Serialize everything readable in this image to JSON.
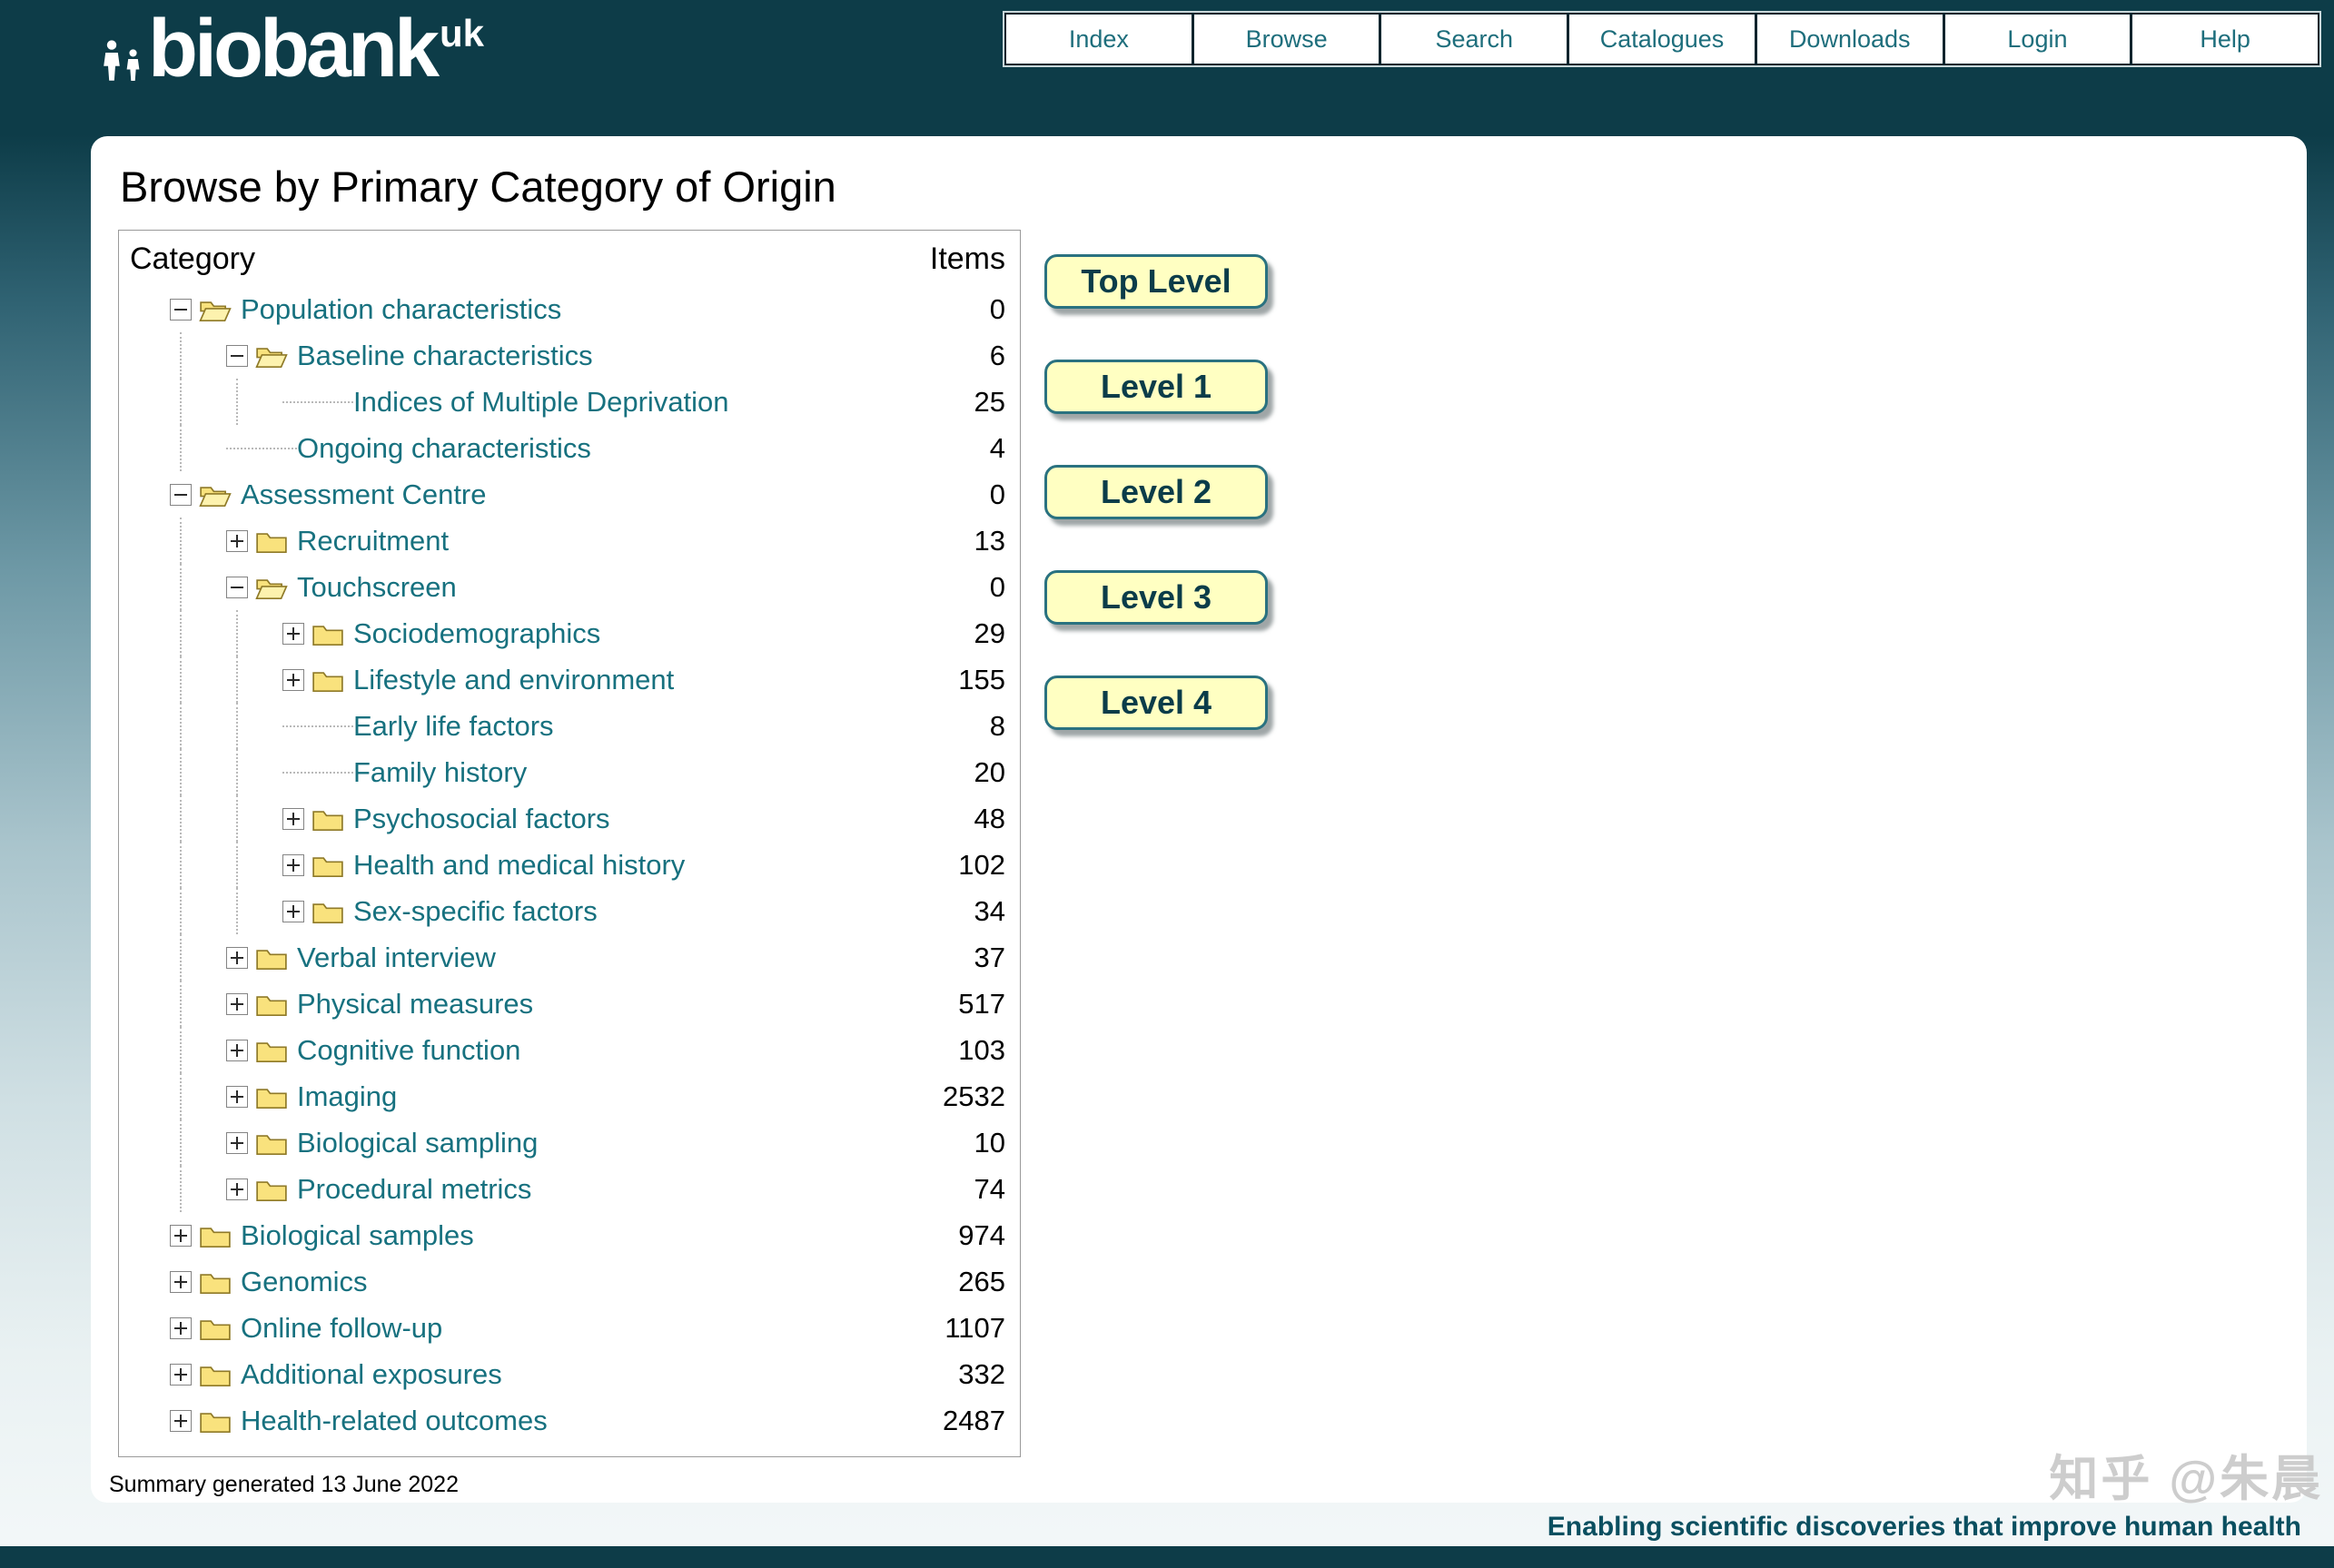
{
  "logo": {
    "text": "biobank",
    "suffix": "uk"
  },
  "nav": {
    "items": [
      "Index",
      "Browse",
      "Search",
      "Catalogues",
      "Downloads",
      "Login",
      "Help"
    ]
  },
  "page": {
    "title": "Browse by Primary Category of Origin"
  },
  "tree": {
    "header": {
      "category": "Category",
      "items": "Items"
    },
    "rows": [
      {
        "label": "Population characteristics",
        "items": "0",
        "level": 0,
        "state": "expanded"
      },
      {
        "label": "Baseline characteristics",
        "items": "6",
        "level": 1,
        "state": "expanded"
      },
      {
        "label": "Indices of Multiple Deprivation",
        "items": "25",
        "level": 2,
        "state": "leaf"
      },
      {
        "label": "Ongoing characteristics",
        "items": "4",
        "level": 1,
        "state": "leaf"
      },
      {
        "label": "Assessment Centre",
        "items": "0",
        "level": 0,
        "state": "expanded"
      },
      {
        "label": "Recruitment",
        "items": "13",
        "level": 1,
        "state": "collapsed"
      },
      {
        "label": "Touchscreen",
        "items": "0",
        "level": 1,
        "state": "expanded"
      },
      {
        "label": "Sociodemographics",
        "items": "29",
        "level": 2,
        "state": "collapsed"
      },
      {
        "label": "Lifestyle and environment",
        "items": "155",
        "level": 2,
        "state": "collapsed"
      },
      {
        "label": "Early life factors",
        "items": "8",
        "level": 2,
        "state": "leaf"
      },
      {
        "label": "Family history",
        "items": "20",
        "level": 2,
        "state": "leaf"
      },
      {
        "label": "Psychosocial factors",
        "items": "48",
        "level": 2,
        "state": "collapsed"
      },
      {
        "label": "Health and medical history",
        "items": "102",
        "level": 2,
        "state": "collapsed"
      },
      {
        "label": "Sex-specific factors",
        "items": "34",
        "level": 2,
        "state": "collapsed"
      },
      {
        "label": "Verbal interview",
        "items": "37",
        "level": 1,
        "state": "collapsed"
      },
      {
        "label": "Physical measures",
        "items": "517",
        "level": 1,
        "state": "collapsed"
      },
      {
        "label": "Cognitive function",
        "items": "103",
        "level": 1,
        "state": "collapsed"
      },
      {
        "label": "Imaging",
        "items": "2532",
        "level": 1,
        "state": "collapsed"
      },
      {
        "label": "Biological sampling",
        "items": "10",
        "level": 1,
        "state": "collapsed"
      },
      {
        "label": "Procedural metrics",
        "items": "74",
        "level": 1,
        "state": "collapsed"
      },
      {
        "label": "Biological samples",
        "items": "974",
        "level": 0,
        "state": "collapsed"
      },
      {
        "label": "Genomics",
        "items": "265",
        "level": 0,
        "state": "collapsed"
      },
      {
        "label": "Online follow-up",
        "items": "1107",
        "level": 0,
        "state": "collapsed"
      },
      {
        "label": "Additional exposures",
        "items": "332",
        "level": 0,
        "state": "collapsed"
      },
      {
        "label": "Health-related outcomes",
        "items": "2487",
        "level": 0,
        "state": "collapsed"
      }
    ]
  },
  "level_buttons": [
    "Top Level",
    "Level 1",
    "Level 2",
    "Level 3",
    "Level 4"
  ],
  "footer": {
    "summary": "Summary generated 13 June 2022",
    "tagline": "Enabling scientific discoveries that improve human health"
  },
  "watermark": "知乎 @朱晨",
  "colors": {
    "header_bg": "#0d3c48",
    "accent": "#1e6e7c",
    "link": "#17717f",
    "button_bg": "#ffffc2",
    "button_text": "#0b3c49",
    "tagline": "#0a4f60",
    "folder_fill": "#f9e27d"
  }
}
